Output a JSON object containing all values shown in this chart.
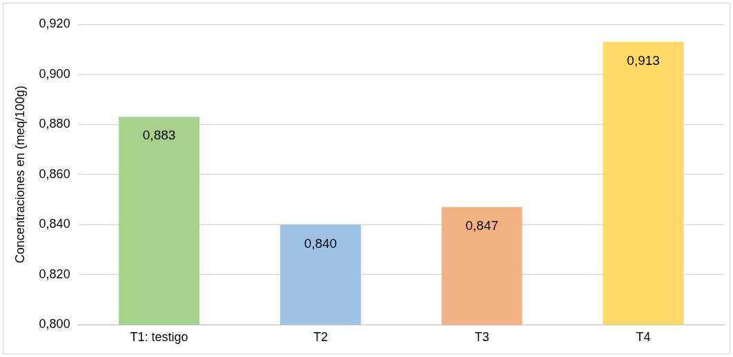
{
  "chart_data": {
    "type": "bar",
    "ylabel": "Concentraciones en (meq/100g)",
    "categories": [
      "T1: testigo",
      "T2",
      "T3",
      "T4"
    ],
    "values": [
      0.883,
      0.84,
      0.847,
      0.913
    ],
    "value_labels": [
      "0,883",
      "0,840",
      "0,847",
      "0,913"
    ],
    "colors": [
      "#a9d18e",
      "#9dc3e6",
      "#f4b183",
      "#ffd966"
    ],
    "ylim": [
      0.8,
      0.92
    ],
    "yticks": [
      {
        "value": 0.8,
        "label": "0,800"
      },
      {
        "value": 0.82,
        "label": "0,820"
      },
      {
        "value": 0.84,
        "label": "0,840"
      },
      {
        "value": 0.86,
        "label": "0,860"
      },
      {
        "value": 0.88,
        "label": "0,880"
      },
      {
        "value": 0.9,
        "label": "0,900"
      },
      {
        "value": 0.92,
        "label": "0,920"
      }
    ],
    "grid": "y",
    "legend": false
  }
}
